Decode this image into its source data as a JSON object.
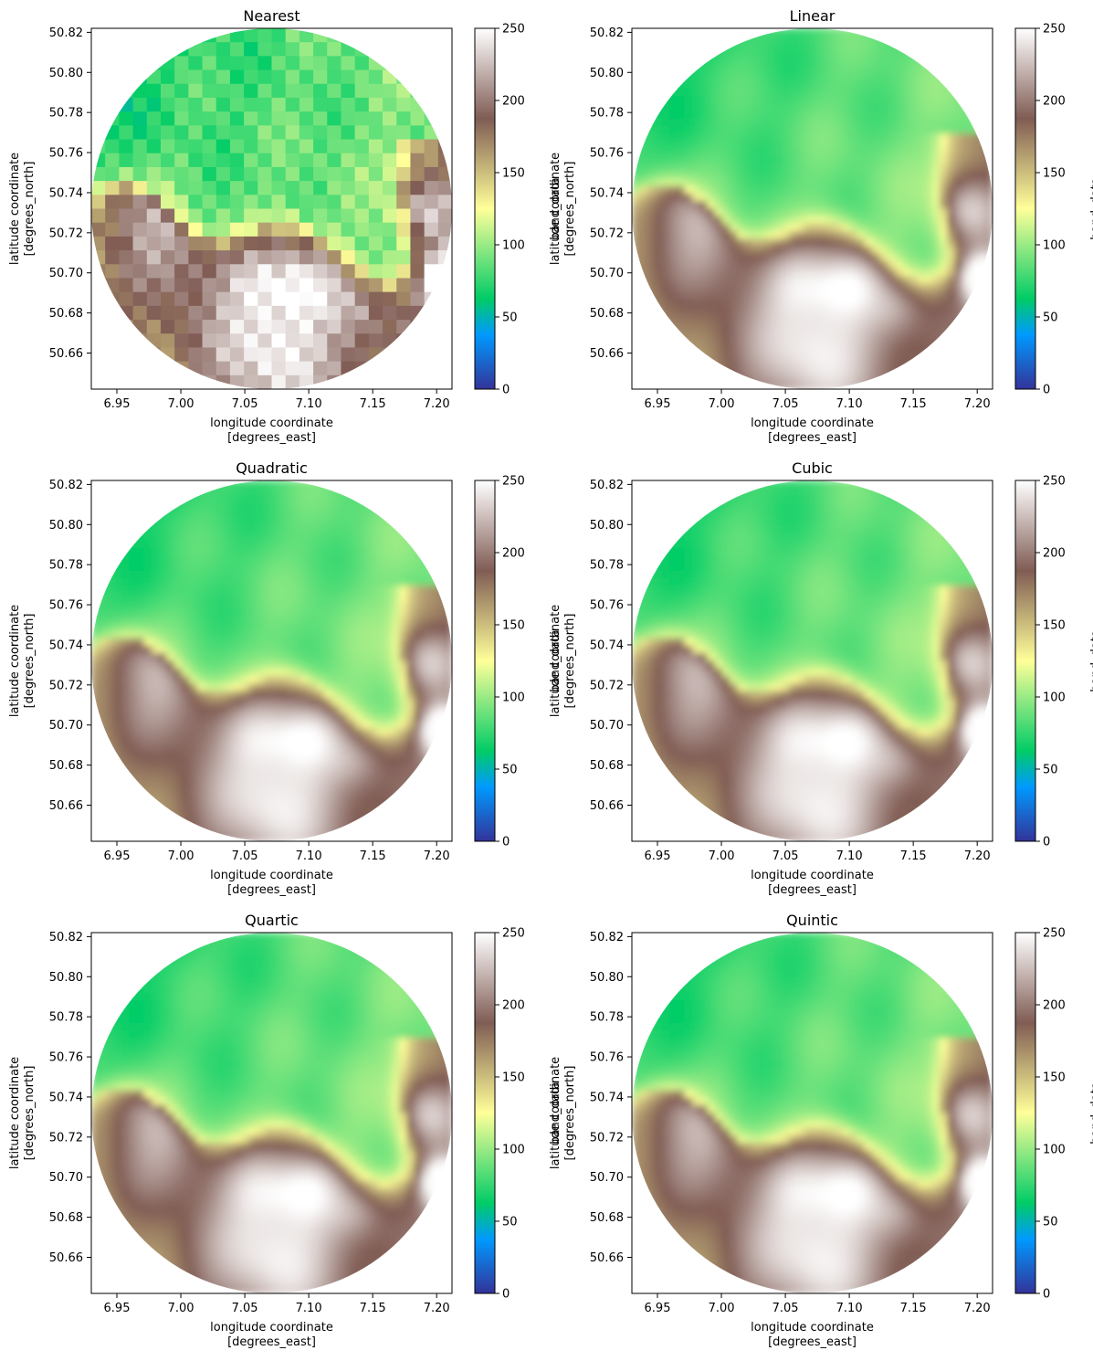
{
  "chart_data": [
    {
      "type": "heatmap",
      "title": "Nearest",
      "style": "blocky",
      "xlabel": "longitude coordinate\n[degrees_east]",
      "ylabel": "latitude coordinate\n[degrees_north]",
      "xticks": [
        "6.95",
        "7.00",
        "7.05",
        "7.10",
        "7.15",
        "7.20"
      ],
      "yticks": [
        "50.82",
        "50.80",
        "50.78",
        "50.76",
        "50.74",
        "50.72",
        "50.70",
        "50.68",
        "50.66"
      ],
      "xlim": [
        6.93,
        7.212
      ],
      "ylim": [
        50.642,
        50.822
      ],
      "colorbar": {
        "label": "band_data",
        "ticks": [
          "0",
          "50",
          "100",
          "150",
          "200",
          "250"
        ],
        "range": [
          0,
          250
        ],
        "colormap": "terrain"
      }
    },
    {
      "type": "heatmap",
      "title": "Linear",
      "style": "smooth",
      "xlabel": "longitude coordinate\n[degrees_east]",
      "ylabel": "latitude coordinate\n[degrees_north]",
      "xticks": [
        "6.95",
        "7.00",
        "7.05",
        "7.10",
        "7.15",
        "7.20"
      ],
      "yticks": [
        "50.82",
        "50.80",
        "50.78",
        "50.76",
        "50.74",
        "50.72",
        "50.70",
        "50.68",
        "50.66"
      ],
      "xlim": [
        6.93,
        7.212
      ],
      "ylim": [
        50.642,
        50.822
      ],
      "colorbar": {
        "label": "band_data",
        "ticks": [
          "0",
          "50",
          "100",
          "150",
          "200",
          "250"
        ],
        "range": [
          0,
          250
        ],
        "colormap": "terrain"
      }
    },
    {
      "type": "heatmap",
      "title": "Quadratic",
      "style": "smooth",
      "xlabel": "longitude coordinate\n[degrees_east]",
      "ylabel": "latitude coordinate\n[degrees_north]",
      "xticks": [
        "6.95",
        "7.00",
        "7.05",
        "7.10",
        "7.15",
        "7.20"
      ],
      "yticks": [
        "50.82",
        "50.80",
        "50.78",
        "50.76",
        "50.74",
        "50.72",
        "50.70",
        "50.68",
        "50.66"
      ],
      "xlim": [
        6.93,
        7.212
      ],
      "ylim": [
        50.642,
        50.822
      ],
      "colorbar": {
        "label": "band_data",
        "ticks": [
          "0",
          "50",
          "100",
          "150",
          "200",
          "250"
        ],
        "range": [
          0,
          250
        ],
        "colormap": "terrain"
      }
    },
    {
      "type": "heatmap",
      "title": "Cubic",
      "style": "smooth",
      "xlabel": "longitude coordinate\n[degrees_east]",
      "ylabel": "latitude coordinate\n[degrees_north]",
      "xticks": [
        "6.95",
        "7.00",
        "7.05",
        "7.10",
        "7.15",
        "7.20"
      ],
      "yticks": [
        "50.82",
        "50.80",
        "50.78",
        "50.76",
        "50.74",
        "50.72",
        "50.70",
        "50.68",
        "50.66"
      ],
      "xlim": [
        6.93,
        7.212
      ],
      "ylim": [
        50.642,
        50.822
      ],
      "colorbar": {
        "label": "band_data",
        "ticks": [
          "0",
          "50",
          "100",
          "150",
          "200",
          "250"
        ],
        "range": [
          0,
          250
        ],
        "colormap": "terrain"
      }
    },
    {
      "type": "heatmap",
      "title": "Quartic",
      "style": "smooth",
      "xlabel": "longitude coordinate\n[degrees_east]",
      "ylabel": "latitude coordinate\n[degrees_north]",
      "xticks": [
        "6.95",
        "7.00",
        "7.05",
        "7.10",
        "7.15",
        "7.20"
      ],
      "yticks": [
        "50.82",
        "50.80",
        "50.78",
        "50.76",
        "50.74",
        "50.72",
        "50.70",
        "50.68",
        "50.66"
      ],
      "xlim": [
        6.93,
        7.212
      ],
      "ylim": [
        50.642,
        50.822
      ],
      "colorbar": {
        "label": "band_data",
        "ticks": [
          "0",
          "50",
          "100",
          "150",
          "200",
          "250"
        ],
        "range": [
          0,
          250
        ],
        "colormap": "terrain"
      }
    },
    {
      "type": "heatmap",
      "title": "Quintic",
      "style": "smooth",
      "xlabel": "longitude coordinate\n[degrees_east]",
      "ylabel": "latitude coordinate\n[degrees_north]",
      "xticks": [
        "6.95",
        "7.00",
        "7.05",
        "7.10",
        "7.15",
        "7.20"
      ],
      "yticks": [
        "50.82",
        "50.80",
        "50.78",
        "50.76",
        "50.74",
        "50.72",
        "50.70",
        "50.68",
        "50.66"
      ],
      "xlim": [
        6.93,
        7.212
      ],
      "ylim": [
        50.642,
        50.822
      ],
      "colorbar": {
        "label": "band_data",
        "ticks": [
          "0",
          "50",
          "100",
          "150",
          "200",
          "250"
        ],
        "range": [
          0,
          250
        ],
        "colormap": "terrain"
      }
    }
  ]
}
